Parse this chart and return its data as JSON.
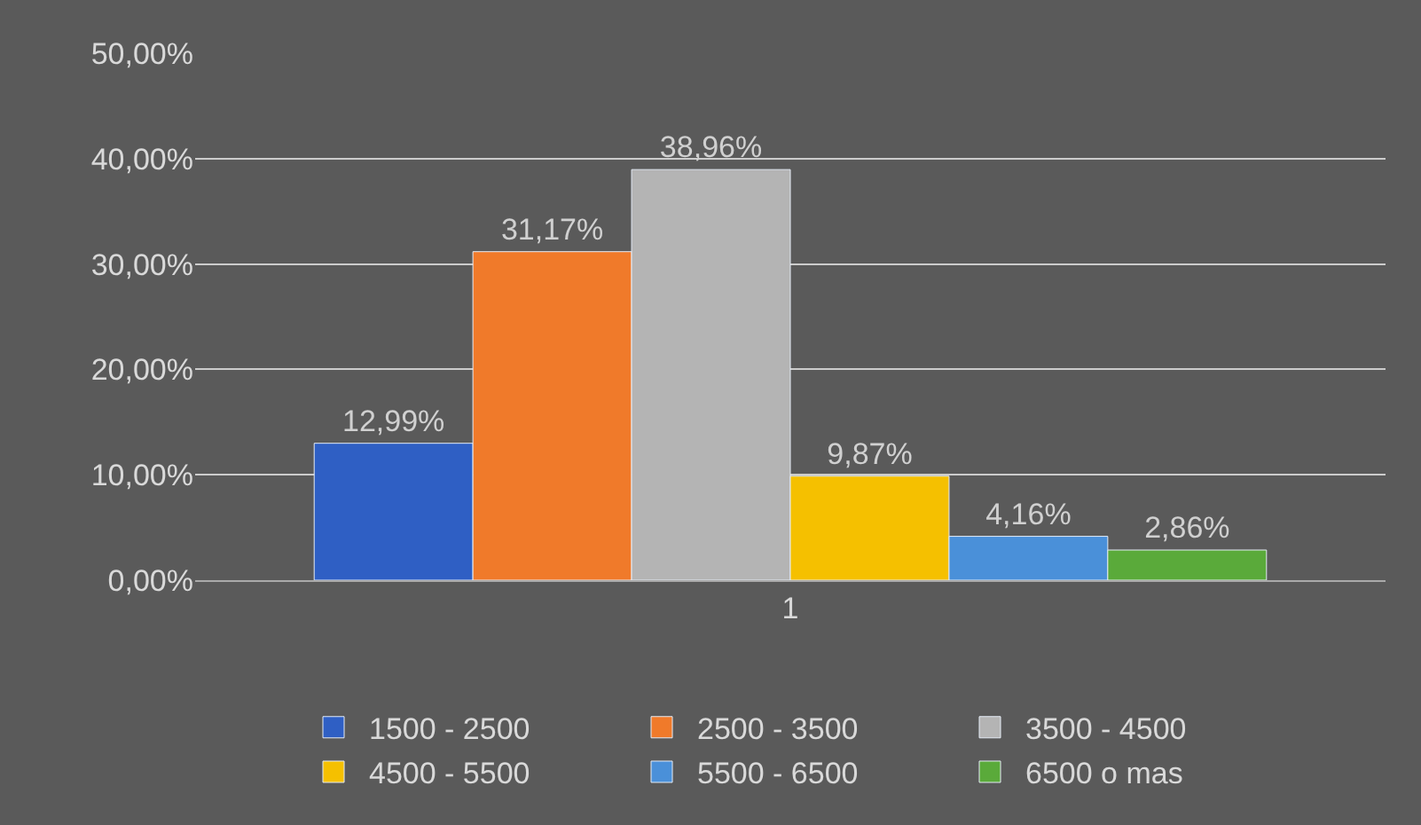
{
  "chart_data": {
    "type": "bar",
    "categories": [
      "1"
    ],
    "series": [
      {
        "name": "1500 - 2500",
        "color": "#2f5fc4",
        "values": [
          12.99
        ],
        "value_labels": [
          "12,99%"
        ]
      },
      {
        "name": "2500 - 3500",
        "color": "#f07a2a",
        "values": [
          31.17
        ],
        "value_labels": [
          "31,17%"
        ]
      },
      {
        "name": "3500 - 4500",
        "color": "#b4b4b4",
        "values": [
          38.96
        ],
        "value_labels": [
          "38,96%"
        ]
      },
      {
        "name": "4500 - 5500",
        "color": "#f5c000",
        "values": [
          9.87
        ],
        "value_labels": [
          "9,87%"
        ]
      },
      {
        "name": "5500 - 6500",
        "color": "#4a90d9",
        "values": [
          4.16
        ],
        "value_labels": [
          "4,16%"
        ]
      },
      {
        "name": "6500 o mas",
        "color": "#5aaa3a",
        "values": [
          2.86
        ],
        "value_labels": [
          "2,86%"
        ]
      }
    ],
    "ylim": [
      0,
      50
    ],
    "yticks": [
      {
        "value": 0,
        "label": "0,00%"
      },
      {
        "value": 10,
        "label": "10,00%"
      },
      {
        "value": 20,
        "label": "20,00%"
      },
      {
        "value": 30,
        "label": "30,00%"
      },
      {
        "value": 40,
        "label": "40,00%"
      },
      {
        "value": 50,
        "label": "50,00%"
      }
    ],
    "grid": "y",
    "legend": "bottom"
  }
}
